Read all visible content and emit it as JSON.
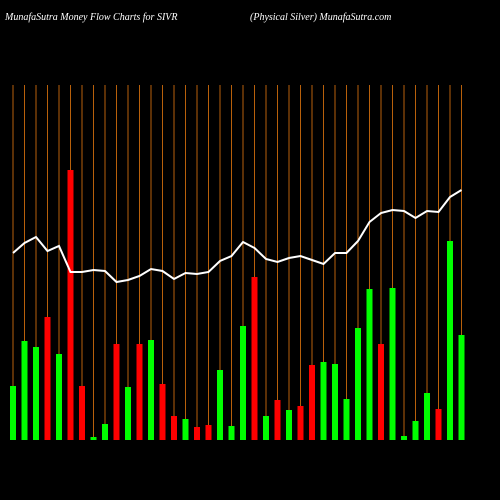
{
  "chart_data": {
    "type": "bar_line",
    "title": "MunafaSutra  Money Flow  Charts for SIVR",
    "subtitle": "(Physical Silver) MunafaSutra.com",
    "categories": [
      null,
      null,
      null,
      null,
      null,
      null,
      null,
      null,
      null,
      null,
      null,
      null,
      null,
      null,
      null,
      null,
      null,
      null,
      null,
      null,
      null,
      null,
      null,
      null,
      null,
      null,
      null,
      null,
      null,
      null,
      null,
      null,
      null,
      null,
      null,
      null,
      null,
      null,
      null,
      null
    ],
    "bar_values": [
      54,
      99,
      93,
      123,
      86,
      270,
      54,
      3,
      16,
      96,
      53,
      96,
      100,
      56,
      24,
      21,
      13,
      15,
      70,
      14,
      114,
      163,
      24,
      40,
      30,
      34,
      75,
      78,
      76,
      41,
      112,
      151,
      96,
      152,
      4,
      19,
      47,
      31,
      199,
      105
    ],
    "bar_colors": [
      "#00ff00",
      "#00ff00",
      "#00ff00",
      "#ff0000",
      "#00ff00",
      "#ff0000",
      "#ff0000",
      "#00ff00",
      "#00ff00",
      "#ff0000",
      "#00ff00",
      "#ff0000",
      "#00ff00",
      "#ff0000",
      "#ff0000",
      "#00ff00",
      "#ff0000",
      "#ff0000",
      "#00ff00",
      "#00ff00",
      "#00ff00",
      "#ff0000",
      "#00ff00",
      "#ff0000",
      "#00ff00",
      "#ff0000",
      "#ff0000",
      "#00ff00",
      "#00ff00",
      "#00ff00",
      "#00ff00",
      "#00ff00",
      "#ff0000",
      "#00ff00",
      "#00ff00",
      "#00ff00",
      "#00ff00",
      "#ff0000",
      "#00ff00",
      "#00ff00"
    ],
    "line_values": [
      187,
      197,
      203,
      189,
      194,
      168,
      168,
      170,
      169,
      158,
      160,
      164,
      171,
      169,
      161,
      167,
      166,
      168,
      179,
      184,
      198,
      192,
      181,
      178,
      182,
      184,
      180,
      176,
      187,
      187,
      199,
      218,
      227,
      230,
      229,
      222,
      229,
      228,
      243,
      250
    ],
    "line_color": "#ffffff",
    "grid_color": "#b8600b",
    "ylim": [
      0,
      400
    ]
  }
}
